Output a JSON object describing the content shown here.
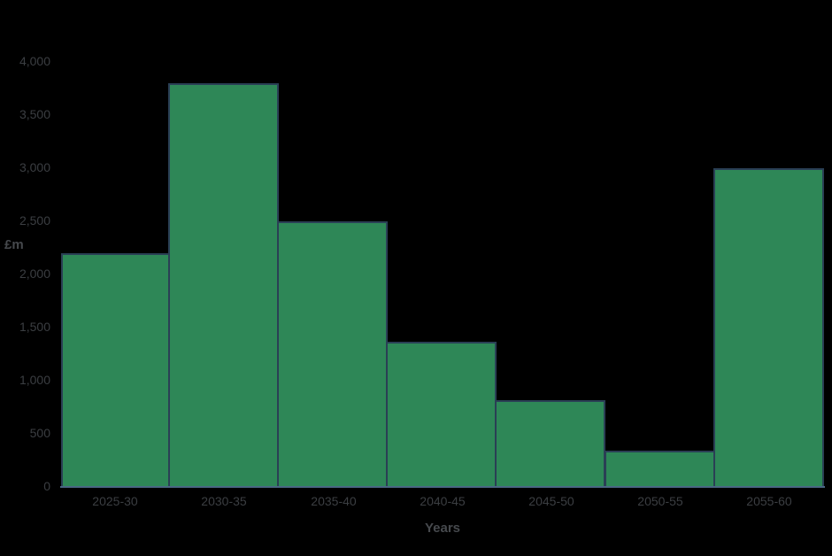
{
  "chart_data": {
    "type": "bar",
    "style": "histogram-adjacent-bars",
    "title": "",
    "xlabel": "Years",
    "ylabel": "£m",
    "categories": [
      "2025-30",
      "2030-35",
      "2035-40",
      "2040-45",
      "2045-50",
      "2050-55",
      "2055-60"
    ],
    "values": [
      2200,
      3800,
      2500,
      1370,
      820,
      340,
      3000
    ],
    "ylim": [
      0,
      4200
    ],
    "yticks": [
      0,
      500,
      1000,
      1500,
      2000,
      2500,
      3000,
      3500,
      4000
    ],
    "ytick_labels": [
      "0",
      "500",
      "1,000",
      "1,500",
      "2,000",
      "2,500",
      "3,000",
      "3,500",
      "4,000"
    ],
    "grid": false,
    "legend": false,
    "colors": {
      "background": "#000000",
      "bar_fill": "#2e8757",
      "bar_border": "#2a3f55",
      "axis_line": "#4a6784",
      "tick_text": "#3b3e42",
      "title_text": "#46494d"
    }
  }
}
